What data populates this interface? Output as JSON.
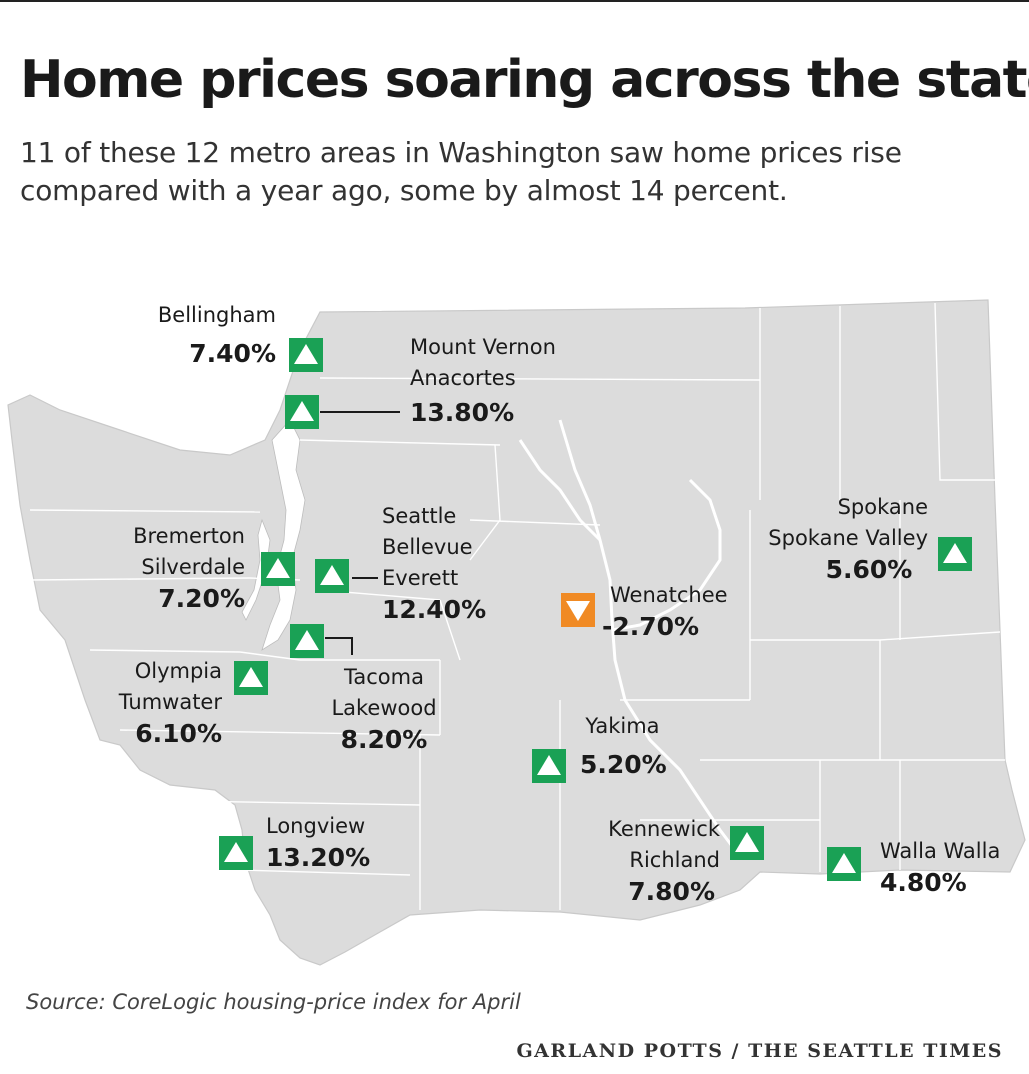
{
  "title": "Home prices soaring across the state",
  "subtitle": "11 of these 12 metro areas in Washington saw home prices rise compared with a year ago, some by almost 14 percent.",
  "source": "Source: CoreLogic housing-price index for April",
  "credit": "GARLAND POTTS / THE SEATTLE TIMES",
  "colors": {
    "rise": "#1aa155",
    "fall": "#f08a24",
    "land": "#dcdcdc",
    "border": "#ffffff"
  },
  "metros": [
    {
      "id": "bellingham",
      "lines": [
        "Bellingham"
      ],
      "change": "7.40%",
      "direction": "up"
    },
    {
      "id": "mount-vernon",
      "lines": [
        "Mount Vernon",
        "Anacortes"
      ],
      "change": "13.80%",
      "direction": "up"
    },
    {
      "id": "bremerton",
      "lines": [
        "Bremerton",
        "Silverdale"
      ],
      "change": "7.20%",
      "direction": "up"
    },
    {
      "id": "seattle",
      "lines": [
        "Seattle",
        "Bellevue",
        "Everett"
      ],
      "change": "12.40%",
      "direction": "up"
    },
    {
      "id": "tacoma",
      "lines": [
        "Tacoma",
        "Lakewood"
      ],
      "change": "8.20%",
      "direction": "up"
    },
    {
      "id": "olympia",
      "lines": [
        "Olympia",
        "Tumwater"
      ],
      "change": "6.10%",
      "direction": "up"
    },
    {
      "id": "wenatchee",
      "lines": [
        "Wenatchee"
      ],
      "change": "-2.70%",
      "direction": "down"
    },
    {
      "id": "spokane",
      "lines": [
        "Spokane",
        "Spokane Valley"
      ],
      "change": "5.60%",
      "direction": "up"
    },
    {
      "id": "yakima",
      "lines": [
        "Yakima"
      ],
      "change": "5.20%",
      "direction": "up"
    },
    {
      "id": "longview",
      "lines": [
        "Longview"
      ],
      "change": "13.20%",
      "direction": "up"
    },
    {
      "id": "kennewick",
      "lines": [
        "Kennewick",
        "Richland"
      ],
      "change": "7.80%",
      "direction": "up"
    },
    {
      "id": "walla-walla",
      "lines": [
        "Walla Walla"
      ],
      "change": "4.80%",
      "direction": "up"
    }
  ]
}
